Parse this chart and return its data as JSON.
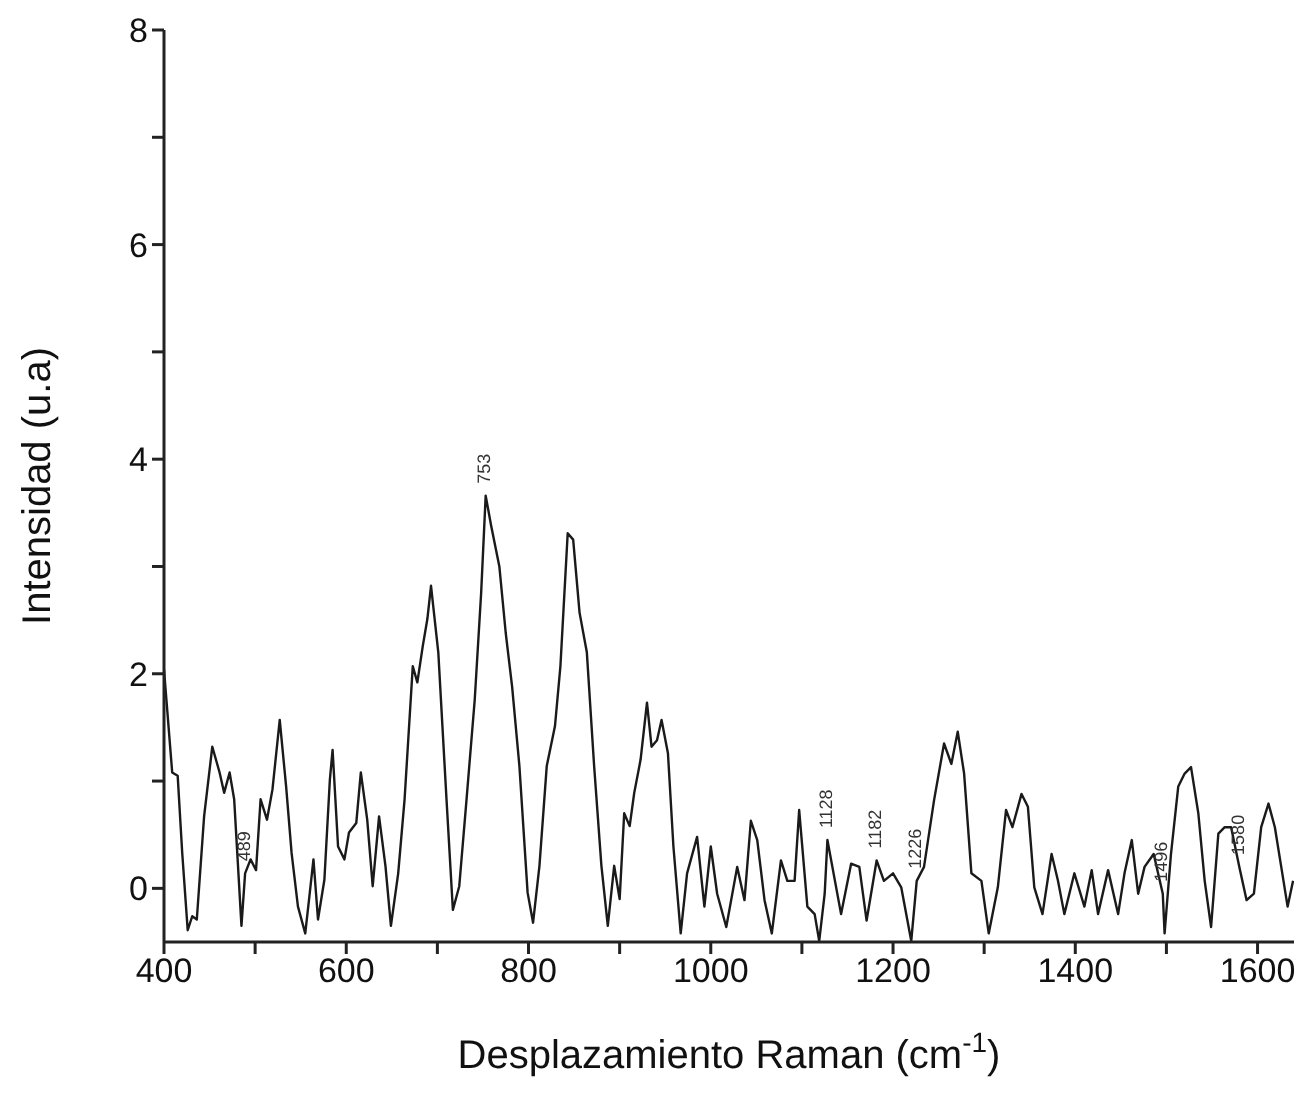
{
  "chart_data": {
    "type": "line",
    "xlabel": "Desplazamiento Raman (cm$^{-1}$)",
    "ylabel": "Intensidad (u.a)",
    "xlim": [
      400,
      1640
    ],
    "ylim": [
      -0.5,
      8
    ],
    "xticks": [
      400,
      {
        "value": 500,
        "label": null
      },
      600,
      {
        "value": 700,
        "label": null
      },
      800,
      {
        "value": 900,
        "label": null
      },
      1000,
      {
        "value": 1100,
        "label": null
      },
      1200,
      {
        "value": 1300,
        "label": null
      },
      1400,
      {
        "value": 1500,
        "label": null
      },
      1600
    ],
    "yticks": [
      0,
      {
        "value": 1,
        "label": null
      },
      2,
      {
        "value": 3,
        "label": null
      },
      4,
      {
        "value": 5,
        "label": null
      },
      6,
      {
        "value": 7,
        "label": null
      },
      8
    ],
    "marker": "none",
    "line_style": "solid",
    "series": [
      {
        "color": "#1a1a1a",
        "x": [
          400,
          409,
          415,
          420,
          426,
          431,
          436,
          444,
          453,
          461,
          466,
          472,
          477,
          485,
          489,
          495,
          501,
          506,
          513,
          519,
          527,
          534,
          540,
          547,
          555,
          560,
          564,
          569,
          576,
          582,
          585,
          591,
          598,
          603,
          611,
          616,
          623,
          629,
          636,
          643,
          649,
          657,
          664,
          673,
          678,
          684,
          689,
          693,
          701,
          710,
          717,
          724,
          732,
          741,
          748,
          753,
          759,
          768,
          775,
          782,
          790,
          799,
          805,
          812,
          820,
          829,
          835,
          843,
          849,
          856,
          864,
          872,
          880,
          887,
          894,
          900,
          905,
          911,
          916,
          923,
          930,
          935,
          941,
          946,
          953,
          959,
          967,
          974,
          985,
          993,
          1000,
          1007,
          1017,
          1029,
          1037,
          1044,
          1051,
          1059,
          1067,
          1077,
          1084,
          1092,
          1097,
          1106,
          1114,
          1119,
          1125,
          1128,
          1143,
          1154,
          1163,
          1171,
          1182,
          1190,
          1200,
          1209,
          1220,
          1226,
          1234,
          1245,
          1256,
          1264,
          1271,
          1278,
          1286,
          1297,
          1305,
          1315,
          1324,
          1331,
          1341,
          1348,
          1355,
          1364,
          1374,
          1381,
          1388,
          1399,
          1410,
          1418,
          1425,
          1436,
          1447,
          1454,
          1462,
          1469,
          1476,
          1486,
          1496,
          1498,
          1505,
          1513,
          1520,
          1527,
          1535,
          1542,
          1549,
          1557,
          1564,
          1571,
          1580,
          1588,
          1596,
          1604,
          1612,
          1619,
          1626,
          1633,
          1639
        ],
        "values": [
          2.04,
          1.08,
          1.05,
          0.33,
          -0.39,
          -0.26,
          -0.29,
          0.67,
          1.32,
          1.08,
          0.89,
          1.08,
          0.83,
          -0.35,
          0.14,
          0.27,
          0.17,
          0.83,
          0.64,
          0.92,
          1.57,
          0.95,
          0.33,
          -0.17,
          -0.42,
          -0.04,
          0.27,
          -0.29,
          0.08,
          1.01,
          1.29,
          0.39,
          0.27,
          0.52,
          0.61,
          1.08,
          0.64,
          0.02,
          0.67,
          0.21,
          -0.35,
          0.14,
          0.83,
          2.07,
          1.92,
          2.26,
          2.51,
          2.82,
          2.2,
          0.83,
          -0.2,
          0.02,
          0.83,
          1.76,
          2.75,
          3.66,
          3.38,
          3.0,
          2.38,
          1.88,
          1.14,
          -0.04,
          -0.32,
          0.21,
          1.14,
          1.51,
          2.07,
          3.31,
          3.25,
          2.57,
          2.2,
          1.14,
          0.21,
          -0.35,
          0.21,
          -0.1,
          0.7,
          0.58,
          0.89,
          1.2,
          1.73,
          1.32,
          1.38,
          1.57,
          1.26,
          0.39,
          -0.42,
          0.14,
          0.48,
          -0.17,
          0.39,
          -0.05,
          -0.36,
          0.2,
          -0.11,
          0.63,
          0.45,
          -0.11,
          -0.42,
          0.26,
          0.07,
          0.07,
          0.73,
          -0.17,
          -0.24,
          -0.49,
          -0.05,
          0.45,
          -0.24,
          0.23,
          0.2,
          -0.3,
          0.26,
          0.07,
          0.14,
          0.01,
          -0.49,
          0.07,
          0.2,
          0.82,
          1.35,
          1.16,
          1.46,
          1.07,
          0.14,
          0.07,
          -0.42,
          0.01,
          0.73,
          0.57,
          0.88,
          0.76,
          0.01,
          -0.24,
          0.32,
          0.07,
          -0.24,
          0.14,
          -0.17,
          0.17,
          -0.24,
          0.17,
          -0.24,
          0.14,
          0.45,
          -0.05,
          0.2,
          0.32,
          -0.05,
          -0.42,
          0.32,
          0.95,
          1.07,
          1.13,
          0.7,
          0.07,
          -0.36,
          0.51,
          0.57,
          0.57,
          0.2,
          -0.11,
          -0.05,
          0.57,
          0.79,
          0.57,
          0.2,
          -0.17,
          0.07
        ]
      }
    ],
    "annotations": [
      {
        "text": "489",
        "x": 489,
        "y": 0.14
      },
      {
        "text": "753",
        "x": 753,
        "y": 3.66
      },
      {
        "text": "1128",
        "x": 1128,
        "y": 0.45
      },
      {
        "text": "1182",
        "x": 1182,
        "y": 0.26
      },
      {
        "text": "1226",
        "x": 1226,
        "y": 0.07
      },
      {
        "text": "1496",
        "x": 1496,
        "y": -0.05
      },
      {
        "text": "1580",
        "x": 1580,
        "y": 0.2
      }
    ]
  }
}
